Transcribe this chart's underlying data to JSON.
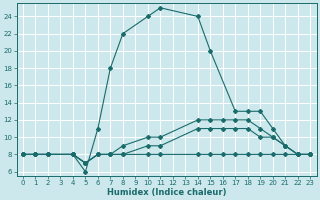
{
  "title": "",
  "xlabel": "Humidex (Indice chaleur)",
  "bg_color": "#cce8ec",
  "grid_color": "#ffffff",
  "line_color": "#1a6b6b",
  "xlim": [
    -0.5,
    23.5
  ],
  "ylim": [
    5.5,
    25.5
  ],
  "xticks": [
    0,
    1,
    2,
    3,
    4,
    5,
    6,
    7,
    8,
    9,
    10,
    11,
    12,
    13,
    14,
    15,
    16,
    17,
    18,
    19,
    20,
    21,
    22,
    23
  ],
  "yticks": [
    6,
    8,
    10,
    12,
    14,
    16,
    18,
    20,
    22,
    24
  ],
  "line1_x": [
    0,
    1,
    2,
    4,
    5,
    6,
    7,
    8,
    10,
    11,
    14,
    15,
    17,
    18,
    19,
    20,
    21,
    22,
    23
  ],
  "line1_y": [
    8,
    8,
    8,
    8,
    6,
    11,
    18,
    22,
    24,
    25,
    24,
    20,
    13,
    13,
    13,
    11,
    9,
    8,
    8
  ],
  "line2_x": [
    0,
    1,
    2,
    4,
    5,
    6,
    7,
    8,
    10,
    11,
    14,
    15,
    16,
    17,
    18,
    19,
    20,
    21,
    22,
    23
  ],
  "line2_y": [
    8,
    8,
    8,
    8,
    7,
    8,
    8,
    9,
    10,
    10,
    12,
    12,
    12,
    12,
    12,
    11,
    10,
    9,
    8,
    8
  ],
  "line3_x": [
    0,
    1,
    2,
    4,
    5,
    6,
    7,
    8,
    10,
    11,
    14,
    15,
    16,
    17,
    18,
    19,
    20,
    21,
    22,
    23
  ],
  "line3_y": [
    8,
    8,
    8,
    8,
    7,
    8,
    8,
    8,
    9,
    9,
    11,
    11,
    11,
    11,
    11,
    10,
    10,
    9,
    8,
    8
  ],
  "line4_x": [
    0,
    1,
    2,
    4,
    5,
    6,
    7,
    8,
    10,
    11,
    14,
    15,
    16,
    17,
    18,
    19,
    20,
    21,
    22,
    23
  ],
  "line4_y": [
    8,
    8,
    8,
    8,
    7,
    8,
    8,
    8,
    8,
    8,
    8,
    8,
    8,
    8,
    8,
    8,
    8,
    8,
    8,
    8
  ],
  "tick_fontsize": 5.0,
  "xlabel_fontsize": 6.0,
  "marker_size": 2.0,
  "linewidth": 0.8
}
